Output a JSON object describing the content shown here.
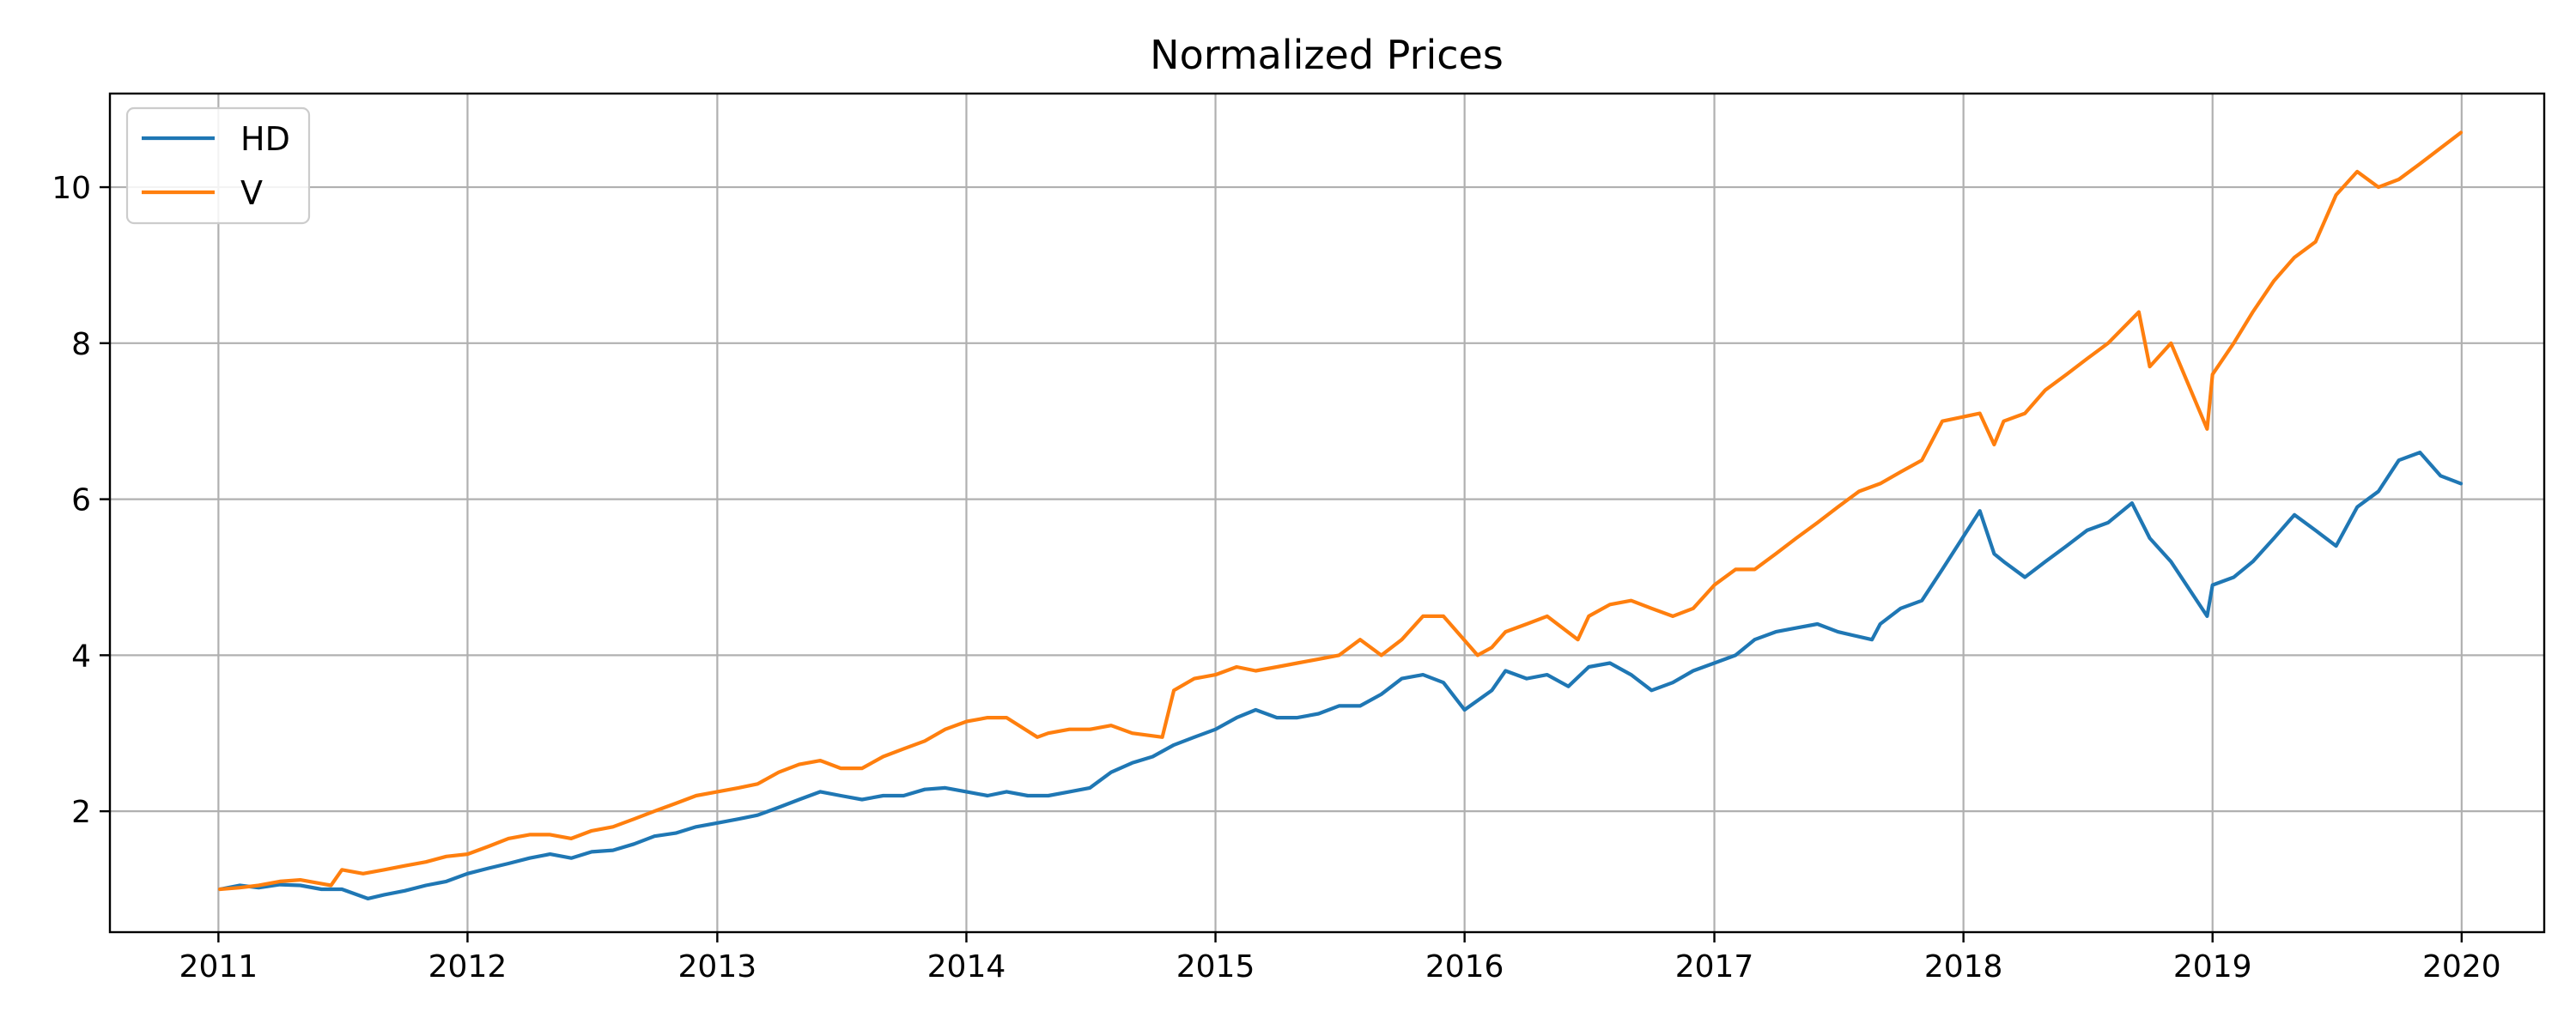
{
  "chart_data": {
    "type": "line",
    "title": "Normalized Prices",
    "xlabel": "",
    "ylabel": "",
    "x_ticks": [
      "2011",
      "2012",
      "2013",
      "2014",
      "2015",
      "2016",
      "2017",
      "2018",
      "2019",
      "2020"
    ],
    "y_ticks": [
      "2",
      "4",
      "6",
      "8",
      "10"
    ],
    "xlim": [
      "2010-07-26",
      "2020-05-01"
    ],
    "ylim": [
      0.45,
      11.2
    ],
    "grid": true,
    "legend": "top-left",
    "colors": {
      "HD": "#1f77b4",
      "V": "#ff7f0e"
    },
    "series": [
      {
        "name": "HD",
        "x": [
          "2011-01-03",
          "2011-02-01",
          "2011-03-01",
          "2011-04-01",
          "2011-05-01",
          "2011-06-01",
          "2011-07-01",
          "2011-08-08",
          "2011-09-01",
          "2011-10-01",
          "2011-11-01",
          "2011-12-01",
          "2012-01-01",
          "2012-02-01",
          "2012-03-01",
          "2012-04-01",
          "2012-05-01",
          "2012-06-01",
          "2012-07-01",
          "2012-08-01",
          "2012-09-01",
          "2012-10-01",
          "2012-11-01",
          "2012-12-01",
          "2013-01-01",
          "2013-02-01",
          "2013-03-01",
          "2013-04-01",
          "2013-05-01",
          "2013-06-01",
          "2013-07-01",
          "2013-08-01",
          "2013-09-01",
          "2013-10-01",
          "2013-11-01",
          "2013-12-01",
          "2014-01-01",
          "2014-02-01",
          "2014-03-01",
          "2014-04-01",
          "2014-05-01",
          "2014-06-01",
          "2014-07-01",
          "2014-08-01",
          "2014-09-01",
          "2014-10-01",
          "2014-11-01",
          "2014-12-01",
          "2015-01-01",
          "2015-02-01",
          "2015-03-01",
          "2015-04-01",
          "2015-05-01",
          "2015-06-01",
          "2015-07-01",
          "2015-08-01",
          "2015-09-01",
          "2015-10-01",
          "2015-11-01",
          "2015-12-01",
          "2016-01-01",
          "2016-02-10",
          "2016-03-01",
          "2016-04-01",
          "2016-05-01",
          "2016-06-01",
          "2016-07-01",
          "2016-08-01",
          "2016-09-01",
          "2016-10-01",
          "2016-11-01",
          "2016-12-01",
          "2017-01-01",
          "2017-02-01",
          "2017-03-01",
          "2017-04-01",
          "2017-05-01",
          "2017-06-01",
          "2017-07-01",
          "2017-08-20",
          "2017-09-01",
          "2017-10-01",
          "2017-11-01",
          "2017-12-01",
          "2018-01-25",
          "2018-02-15",
          "2018-03-01",
          "2018-04-01",
          "2018-05-01",
          "2018-06-01",
          "2018-07-01",
          "2018-08-01",
          "2018-09-05",
          "2018-10-01",
          "2018-11-01",
          "2018-12-24",
          "2019-01-01",
          "2019-02-01",
          "2019-03-01",
          "2019-04-01",
          "2019-05-01",
          "2019-06-01",
          "2019-07-01",
          "2019-08-01",
          "2019-09-01",
          "2019-10-01",
          "2019-11-01",
          "2019-12-01",
          "2019-12-31"
        ],
        "values": [
          1.0,
          1.05,
          1.02,
          1.06,
          1.05,
          1.0,
          1.0,
          0.88,
          0.93,
          0.98,
          1.05,
          1.1,
          1.2,
          1.27,
          1.33,
          1.4,
          1.45,
          1.4,
          1.48,
          1.5,
          1.58,
          1.68,
          1.72,
          1.8,
          1.85,
          1.9,
          1.95,
          2.05,
          2.15,
          2.25,
          2.2,
          2.15,
          2.2,
          2.2,
          2.28,
          2.3,
          2.25,
          2.2,
          2.25,
          2.2,
          2.2,
          2.25,
          2.3,
          2.5,
          2.62,
          2.7,
          2.85,
          2.95,
          3.05,
          3.2,
          3.3,
          3.2,
          3.2,
          3.25,
          3.35,
          3.35,
          3.5,
          3.7,
          3.75,
          3.65,
          3.3,
          3.55,
          3.8,
          3.7,
          3.75,
          3.6,
          3.85,
          3.9,
          3.75,
          3.55,
          3.65,
          3.8,
          3.9,
          4.0,
          4.2,
          4.3,
          4.35,
          4.4,
          4.3,
          4.2,
          4.4,
          4.6,
          4.7,
          5.1,
          5.85,
          5.3,
          5.2,
          5.0,
          5.2,
          5.4,
          5.6,
          5.7,
          5.95,
          5.5,
          5.2,
          4.5,
          4.9,
          5.0,
          5.2,
          5.5,
          5.8,
          5.6,
          5.4,
          5.9,
          6.1,
          6.5,
          6.6,
          6.3,
          6.2
        ]
      },
      {
        "name": "V",
        "x": [
          "2011-01-03",
          "2011-02-01",
          "2011-03-01",
          "2011-04-01",
          "2011-05-01",
          "2011-06-15",
          "2011-07-01",
          "2011-08-01",
          "2011-09-01",
          "2011-10-01",
          "2011-11-01",
          "2011-12-01",
          "2012-01-01",
          "2012-02-01",
          "2012-03-01",
          "2012-04-01",
          "2012-05-01",
          "2012-06-01",
          "2012-07-01",
          "2012-08-01",
          "2012-09-01",
          "2012-10-01",
          "2012-11-01",
          "2012-12-01",
          "2013-01-01",
          "2013-02-01",
          "2013-03-01",
          "2013-04-01",
          "2013-05-01",
          "2013-06-01",
          "2013-07-01",
          "2013-08-01",
          "2013-09-01",
          "2013-10-01",
          "2013-11-01",
          "2013-12-01",
          "2014-01-01",
          "2014-02-01",
          "2014-03-01",
          "2014-04-15",
          "2014-05-01",
          "2014-06-01",
          "2014-07-01",
          "2014-08-01",
          "2014-09-01",
          "2014-10-15",
          "2014-11-01",
          "2014-12-01",
          "2015-01-01",
          "2015-02-01",
          "2015-03-01",
          "2015-04-01",
          "2015-05-01",
          "2015-06-01",
          "2015-07-01",
          "2015-08-01",
          "2015-09-01",
          "2015-10-01",
          "2015-11-01",
          "2015-12-01",
          "2016-01-20",
          "2016-02-10",
          "2016-03-01",
          "2016-04-01",
          "2016-05-01",
          "2016-06-15",
          "2016-07-01",
          "2016-08-01",
          "2016-09-01",
          "2016-10-01",
          "2016-11-01",
          "2016-12-01",
          "2017-01-01",
          "2017-02-01",
          "2017-03-01",
          "2017-04-01",
          "2017-05-01",
          "2017-06-01",
          "2017-07-01",
          "2017-08-01",
          "2017-09-01",
          "2017-10-01",
          "2017-11-01",
          "2017-12-01",
          "2018-01-25",
          "2018-02-15",
          "2018-03-01",
          "2018-04-01",
          "2018-05-01",
          "2018-06-01",
          "2018-07-01",
          "2018-08-01",
          "2018-09-15",
          "2018-10-01",
          "2018-11-01",
          "2018-12-24",
          "2019-01-01",
          "2019-02-01",
          "2019-03-01",
          "2019-04-01",
          "2019-05-01",
          "2019-06-01",
          "2019-07-01",
          "2019-08-01",
          "2019-09-01",
          "2019-10-01",
          "2019-11-01",
          "2019-12-01",
          "2019-12-31"
        ],
        "values": [
          1.0,
          1.02,
          1.05,
          1.1,
          1.12,
          1.05,
          1.25,
          1.2,
          1.25,
          1.3,
          1.35,
          1.42,
          1.45,
          1.55,
          1.65,
          1.7,
          1.7,
          1.65,
          1.75,
          1.8,
          1.9,
          2.0,
          2.1,
          2.2,
          2.25,
          2.3,
          2.35,
          2.5,
          2.6,
          2.65,
          2.55,
          2.55,
          2.7,
          2.8,
          2.9,
          3.05,
          3.15,
          3.2,
          3.2,
          2.95,
          3.0,
          3.05,
          3.05,
          3.1,
          3.0,
          2.95,
          3.55,
          3.7,
          3.75,
          3.85,
          3.8,
          3.85,
          3.9,
          3.95,
          4.0,
          4.2,
          4.0,
          4.2,
          4.5,
          4.5,
          4.0,
          4.1,
          4.3,
          4.4,
          4.5,
          4.2,
          4.5,
          4.65,
          4.7,
          4.6,
          4.5,
          4.6,
          4.9,
          5.1,
          5.1,
          5.3,
          5.5,
          5.7,
          5.9,
          6.1,
          6.2,
          6.35,
          6.5,
          7.0,
          7.1,
          6.7,
          7.0,
          7.1,
          7.4,
          7.6,
          7.8,
          8.0,
          8.4,
          7.7,
          8.0,
          6.9,
          7.6,
          8.0,
          8.4,
          8.8,
          9.1,
          9.3,
          9.9,
          10.2,
          10.0,
          10.1,
          10.3,
          10.5,
          10.7
        ]
      }
    ]
  }
}
